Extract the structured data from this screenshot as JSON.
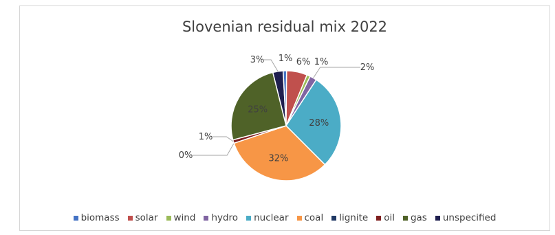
{
  "chart_data": {
    "type": "pie",
    "title": "Slovenian residual mix 2022",
    "categories": [
      "biomass",
      "solar",
      "wind",
      "hydro",
      "nuclear",
      "coal",
      "lignite",
      "oil",
      "gas",
      "unspecified"
    ],
    "values": [
      1,
      6,
      1,
      2,
      28,
      32,
      0,
      1,
      25,
      3
    ],
    "data_labels": [
      "1%",
      "6%",
      "1%",
      "2%",
      "28%",
      "32%",
      "0%",
      "1%",
      "25%",
      "3%"
    ],
    "colors": [
      "#4472c4",
      "#c0504d",
      "#9bbb59",
      "#8064a2",
      "#4bacc6",
      "#f79646",
      "#1f3864",
      "#7f1f1f",
      "#4f6228",
      "#1f1f4f"
    ],
    "legend_position": "bottom"
  }
}
